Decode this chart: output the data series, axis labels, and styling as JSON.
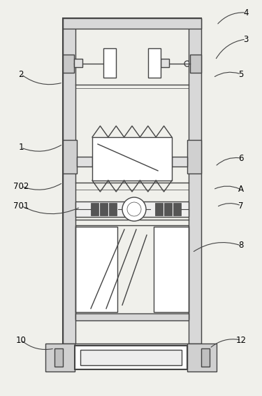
{
  "bg_color": "#f0f0eb",
  "line_color": "#444444",
  "lw": 1.0,
  "lw2": 1.5,
  "fig_width": 3.75,
  "fig_height": 5.66,
  "leaders": [
    [
      "4",
      [
        352,
        548
      ],
      [
        310,
        530
      ]
    ],
    [
      "3",
      [
        352,
        510
      ],
      [
        308,
        480
      ]
    ],
    [
      "2",
      [
        30,
        460
      ],
      [
        90,
        448
      ]
    ],
    [
      "5",
      [
        345,
        460
      ],
      [
        305,
        455
      ]
    ],
    [
      "1",
      [
        30,
        355
      ],
      [
        90,
        360
      ]
    ],
    [
      "6",
      [
        345,
        340
      ],
      [
        308,
        328
      ]
    ],
    [
      "702",
      [
        30,
        300
      ],
      [
        90,
        305
      ]
    ],
    [
      "A",
      [
        345,
        295
      ],
      [
        305,
        295
      ]
    ],
    [
      "701",
      [
        30,
        272
      ],
      [
        115,
        270
      ]
    ],
    [
      "7",
      [
        345,
        272
      ],
      [
        310,
        270
      ]
    ],
    [
      "8",
      [
        345,
        215
      ],
      [
        275,
        205
      ]
    ],
    [
      "10",
      [
        30,
        80
      ],
      [
        78,
        68
      ]
    ],
    [
      "12",
      [
        345,
        80
      ],
      [
        300,
        68
      ]
    ]
  ]
}
